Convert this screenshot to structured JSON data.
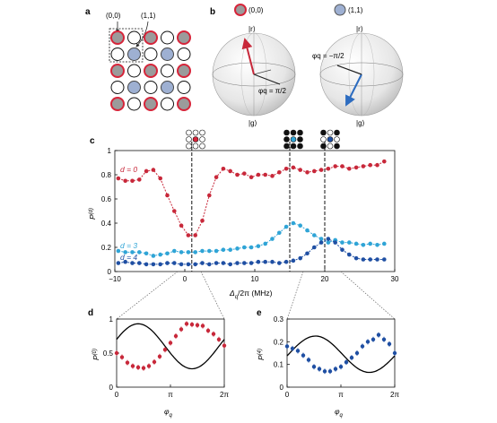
{
  "panels": {
    "a": {
      "label": "a",
      "site00": "(0,0)",
      "site11": "(1,1)"
    },
    "b": {
      "label": "b",
      "legend00": "(0,0)",
      "legend11": "(1,1)",
      "top_state": "|r⟩",
      "bottom_state": "|g⟩",
      "phi_left": "φq = π/2",
      "phi_right": "φq = −π/2"
    },
    "c": {
      "label": "c",
      "label_d0": "d = 0",
      "label_d3": "d = 3",
      "label_d4": "d = 4"
    },
    "d": {
      "label": "d"
    },
    "e": {
      "label": "e"
    }
  },
  "colors": {
    "d0": "#c8283a",
    "d3": "#2fa4d6",
    "d4": "#1f4fa3",
    "fit": "#000000",
    "site_fill_red": "#d6253a",
    "site_fill_blue": "#9eb0d2"
  },
  "chart_data": [
    {
      "id": "c",
      "type": "line",
      "xlabel": "Δq/2π (MHz)",
      "ylabel": "P(d)",
      "xlim": [
        -10,
        30
      ],
      "ylim": [
        0,
        1
      ],
      "xticks": [
        "−10",
        "0",
        "10",
        "20",
        "30"
      ],
      "yticks": [
        "0",
        "0.2",
        "0.4",
        "0.6",
        "0.8",
        "1"
      ],
      "vlines": [
        1,
        15,
        20
      ],
      "x": [
        -9.5,
        -8.5,
        -7.5,
        -6.5,
        -5.5,
        -4.5,
        -3.5,
        -2.5,
        -1.5,
        -0.5,
        0.5,
        1.5,
        2.5,
        3.5,
        4.5,
        5.5,
        6.5,
        7.5,
        8.5,
        9.5,
        10.5,
        11.5,
        12.5,
        13.5,
        14.5,
        15.5,
        16.5,
        17.5,
        18.5,
        19.5,
        20.5,
        21.5,
        22.5,
        23.5,
        24.5,
        25.5,
        26.5,
        27.5,
        28.5
      ],
      "series": [
        {
          "name": "d = 0",
          "values": [
            0.77,
            0.75,
            0.75,
            0.76,
            0.83,
            0.84,
            0.77,
            0.63,
            0.5,
            0.38,
            0.3,
            0.3,
            0.42,
            0.63,
            0.78,
            0.85,
            0.83,
            0.8,
            0.81,
            0.78,
            0.8,
            0.8,
            0.79,
            0.82,
            0.85,
            0.86,
            0.84,
            0.82,
            0.83,
            0.84,
            0.85,
            0.87,
            0.87,
            0.85,
            0.86,
            0.87,
            0.88,
            0.88,
            0.91
          ]
        },
        {
          "name": "d = 3",
          "values": [
            0.17,
            0.16,
            0.16,
            0.16,
            0.15,
            0.13,
            0.14,
            0.15,
            0.17,
            0.16,
            0.16,
            0.16,
            0.17,
            0.17,
            0.17,
            0.18,
            0.18,
            0.19,
            0.2,
            0.2,
            0.21,
            0.23,
            0.27,
            0.32,
            0.37,
            0.4,
            0.38,
            0.34,
            0.3,
            0.27,
            0.24,
            0.26,
            0.24,
            0.24,
            0.23,
            0.22,
            0.23,
            0.22,
            0.23
          ]
        },
        {
          "name": "d = 4",
          "values": [
            0.07,
            0.08,
            0.07,
            0.07,
            0.06,
            0.06,
            0.06,
            0.07,
            0.07,
            0.06,
            0.06,
            0.06,
            0.07,
            0.06,
            0.07,
            0.07,
            0.06,
            0.07,
            0.07,
            0.07,
            0.08,
            0.08,
            0.08,
            0.07,
            0.08,
            0.09,
            0.11,
            0.15,
            0.2,
            0.24,
            0.27,
            0.24,
            0.18,
            0.14,
            0.11,
            0.1,
            0.1,
            0.1,
            0.1
          ]
        }
      ]
    },
    {
      "id": "d",
      "type": "scatter",
      "xlabel": "φq",
      "ylabel": "P(0)",
      "xlim": [
        0,
        6.2832
      ],
      "ylim": [
        0,
        1
      ],
      "xticks": [
        "0",
        "π",
        "2π"
      ],
      "yticks": [
        "0",
        "0.5",
        "1"
      ],
      "series": [
        {
          "name": "data",
          "x": [
            0.0,
            0.314,
            0.628,
            0.942,
            1.257,
            1.571,
            1.885,
            2.199,
            2.513,
            2.827,
            3.142,
            3.456,
            3.77,
            4.084,
            4.398,
            4.712,
            5.027,
            5.341,
            5.655,
            5.969,
            6.283
          ],
          "values": [
            0.5,
            0.44,
            0.36,
            0.31,
            0.29,
            0.28,
            0.31,
            0.37,
            0.45,
            0.55,
            0.65,
            0.75,
            0.85,
            0.93,
            0.92,
            0.91,
            0.9,
            0.83,
            0.78,
            0.7,
            0.61
          ]
        }
      ]
    },
    {
      "id": "e",
      "type": "scatter",
      "xlabel": "φq",
      "ylabel": "P(4)",
      "xlim": [
        0,
        6.2832
      ],
      "ylim": [
        0,
        0.3
      ],
      "xticks": [
        "0",
        "π",
        "2π"
      ],
      "yticks": [
        "0",
        "0.1",
        "0.2",
        "0.3"
      ],
      "series": [
        {
          "name": "data",
          "x": [
            0.0,
            0.314,
            0.628,
            0.942,
            1.257,
            1.571,
            1.885,
            2.199,
            2.513,
            2.827,
            3.142,
            3.456,
            3.77,
            4.084,
            4.398,
            4.712,
            5.027,
            5.341,
            5.655,
            5.969,
            6.283
          ],
          "values": [
            0.18,
            0.17,
            0.16,
            0.14,
            0.12,
            0.09,
            0.08,
            0.07,
            0.07,
            0.08,
            0.09,
            0.11,
            0.13,
            0.15,
            0.18,
            0.2,
            0.21,
            0.23,
            0.21,
            0.19,
            0.15
          ]
        }
      ]
    }
  ]
}
